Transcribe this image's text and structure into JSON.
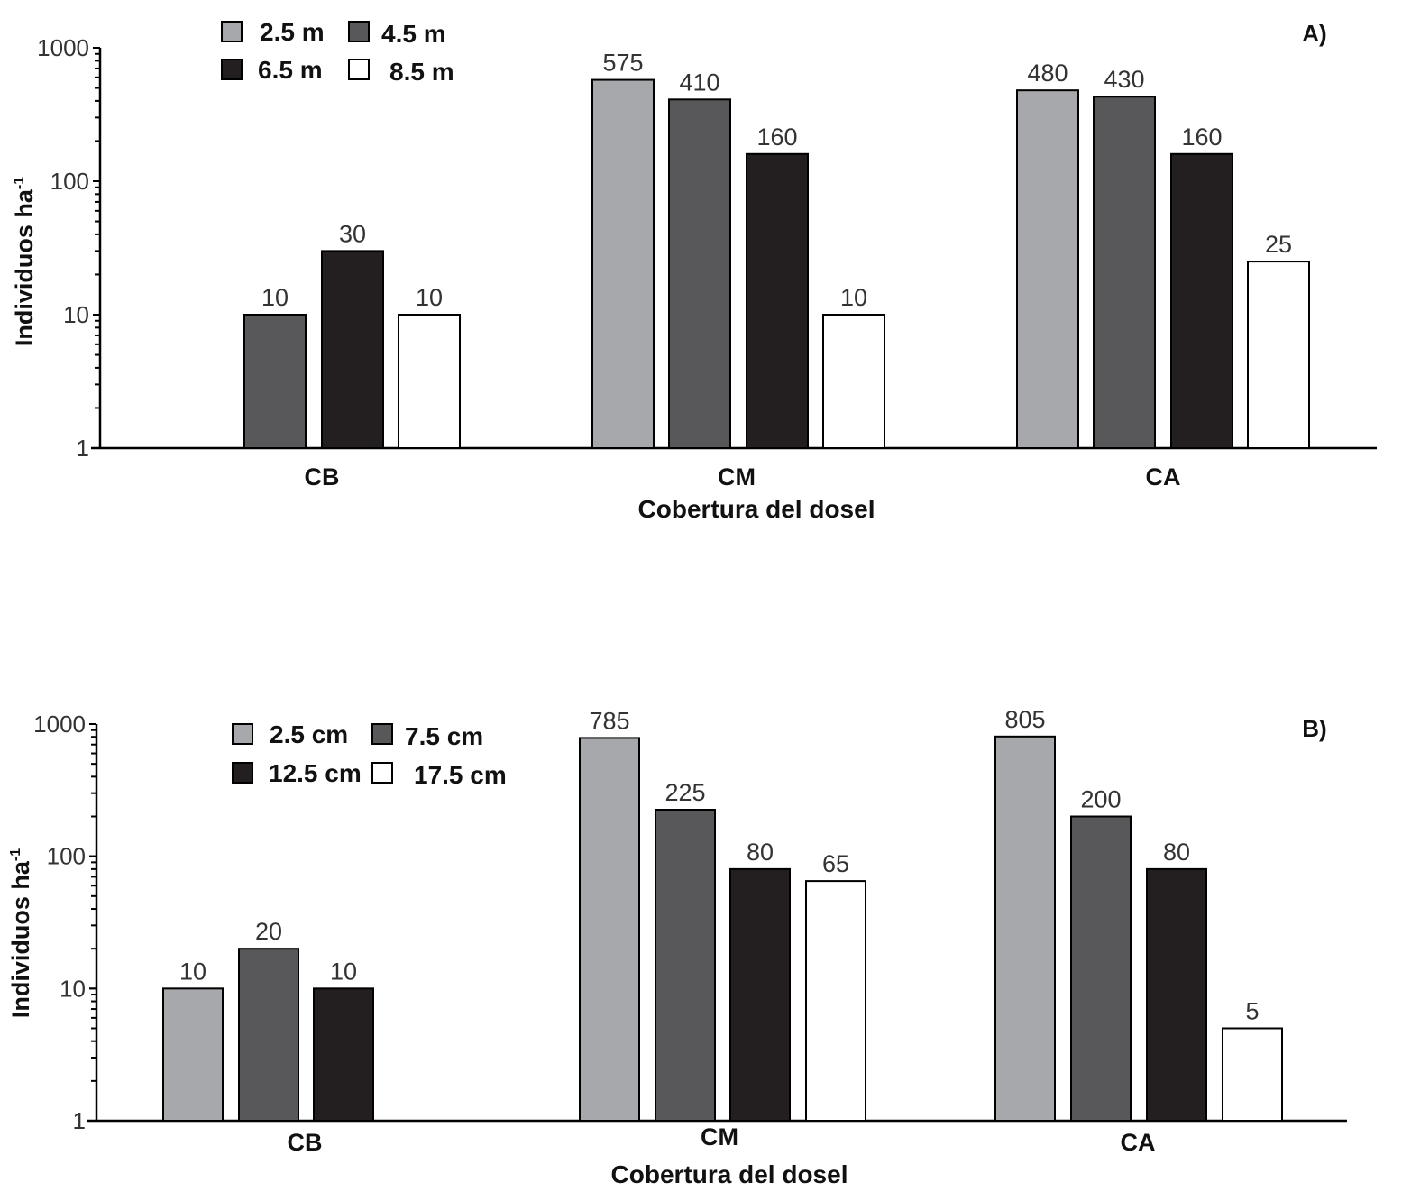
{
  "chart_data": [
    {
      "type": "bar",
      "panel_label": "A)",
      "title": "",
      "xlabel": "Cobertura del dosel",
      "ylabel": "Individuos ha",
      "ylabel_sup": "-1",
      "yscale": "log",
      "ylim": [
        1,
        1000
      ],
      "yticks": [
        "1",
        "10",
        "100",
        "1000"
      ],
      "categories": [
        "CB",
        "CM",
        "CA"
      ],
      "legend_position": "top-left",
      "series": [
        {
          "name": "2.5 m",
          "color": "#a7a8ab",
          "values": [
            null,
            575,
            480
          ]
        },
        {
          "name": "4.5 m",
          "color": "#58585a",
          "values": [
            10,
            410,
            430
          ]
        },
        {
          "name": "6.5 m",
          "color": "#231f20",
          "values": [
            30,
            160,
            160
          ]
        },
        {
          "name": "8.5 m",
          "color": "#ffffff",
          "values": [
            10,
            10,
            25
          ]
        }
      ]
    },
    {
      "type": "bar",
      "panel_label": "B)",
      "title": "",
      "xlabel": "Cobertura del dosel",
      "ylabel": "Individuos ha",
      "ylabel_sup": "-1",
      "yscale": "log",
      "ylim": [
        1,
        1000
      ],
      "yticks": [
        "1",
        "10",
        "100",
        "1000"
      ],
      "categories": [
        "CB",
        "CM",
        "CA"
      ],
      "legend_position": "top-left",
      "series": [
        {
          "name": "2.5 cm",
          "color": "#a7a8ab",
          "values": [
            10,
            785,
            805
          ]
        },
        {
          "name": "7.5 cm",
          "color": "#58585a",
          "values": [
            20,
            225,
            200
          ]
        },
        {
          "name": "12.5 cm",
          "color": "#231f20",
          "values": [
            10,
            80,
            80
          ]
        },
        {
          "name": "17.5 cm",
          "color": "#ffffff",
          "values": [
            null,
            65,
            5
          ]
        }
      ]
    }
  ]
}
